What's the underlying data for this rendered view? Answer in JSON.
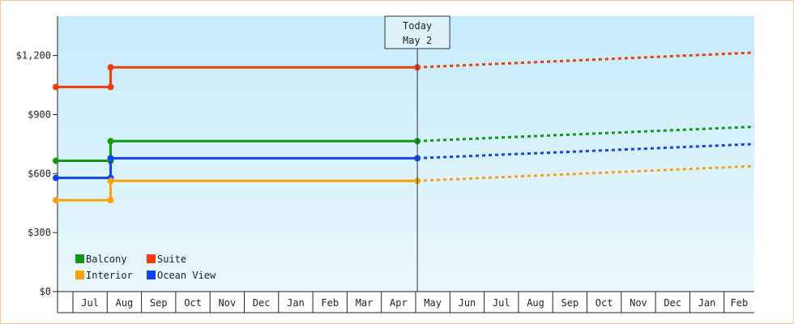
{
  "chart_data": {
    "type": "line",
    "ylim": [
      0,
      1400
    ],
    "y_ticks": [
      {
        "value": 0,
        "label": "$0"
      },
      {
        "value": 300,
        "label": "$300"
      },
      {
        "value": 600,
        "label": "$600"
      },
      {
        "value": 900,
        "label": "$900"
      },
      {
        "value": 1200,
        "label": "$1,200"
      }
    ],
    "x_months": [
      "Jul",
      "Aug",
      "Sep",
      "Oct",
      "Nov",
      "Dec",
      "Jan",
      "Feb",
      "Mar",
      "Apr",
      "May",
      "Jun",
      "Jul",
      "Aug",
      "Sep",
      "Oct",
      "Nov",
      "Dec",
      "Jan",
      "Feb"
    ],
    "today": {
      "line1": "Today",
      "line2": "May 2",
      "x": 10.05
    },
    "grid": false,
    "legend_placement": "bottom-left",
    "series": [
      {
        "name": "Suite",
        "color": "#f03c0f",
        "history": [
          {
            "x": -0.5,
            "y": 1040
          },
          {
            "x": 1.1,
            "y": 1040
          },
          {
            "x": 1.1,
            "y": 1140
          },
          {
            "x": 10.05,
            "y": 1140
          }
        ],
        "forecast": [
          {
            "x": 10.05,
            "y": 1140
          },
          {
            "x": 20,
            "y": 1215
          }
        ]
      },
      {
        "name": "Balcony",
        "color": "#119911",
        "history": [
          {
            "x": -0.5,
            "y": 665
          },
          {
            "x": 1.1,
            "y": 665
          },
          {
            "x": 1.1,
            "y": 765
          },
          {
            "x": 10.05,
            "y": 765
          }
        ],
        "forecast": [
          {
            "x": 10.05,
            "y": 765
          },
          {
            "x": 20,
            "y": 838
          }
        ]
      },
      {
        "name": "Ocean View",
        "color": "#1144ee",
        "history": [
          {
            "x": -0.5,
            "y": 578
          },
          {
            "x": 1.1,
            "y": 578
          },
          {
            "x": 1.1,
            "y": 678
          },
          {
            "x": 10.05,
            "y": 678
          }
        ],
        "forecast": [
          {
            "x": 10.05,
            "y": 678
          },
          {
            "x": 20,
            "y": 750
          }
        ]
      },
      {
        "name": "Interior",
        "color": "#f8a10d",
        "history": [
          {
            "x": -0.5,
            "y": 465
          },
          {
            "x": 1.1,
            "y": 465
          },
          {
            "x": 1.1,
            "y": 563
          },
          {
            "x": 10.05,
            "y": 563
          }
        ],
        "forecast": [
          {
            "x": 10.05,
            "y": 563
          },
          {
            "x": 20,
            "y": 638
          }
        ]
      }
    ],
    "legend": [
      {
        "name": "Balcony",
        "color": "#119911"
      },
      {
        "name": "Suite",
        "color": "#f03c0f"
      },
      {
        "name": "Interior",
        "color": "#f8a10d"
      },
      {
        "name": "Ocean View",
        "color": "#1144ee"
      }
    ]
  }
}
